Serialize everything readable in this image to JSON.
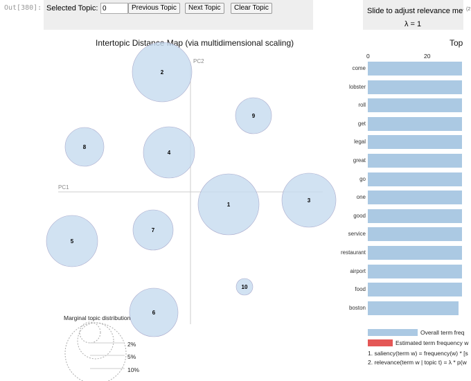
{
  "cell_prompt": "Out[380]:",
  "controls": {
    "selected_topic_label": "Selected Topic:",
    "selected_topic_value": "0",
    "prev": "Previous Topic",
    "next": "Next Topic",
    "clear": "Clear Topic"
  },
  "slider": {
    "label": "Slide to adjust relevance metri",
    "lambda": "λ = 1",
    "cut": "(2"
  },
  "left": {
    "title": "Intertopic Distance Map (via multidimensional scaling)",
    "pc1": "PC1",
    "pc2": "PC2",
    "topics": [
      "1",
      "2",
      "3",
      "4",
      "5",
      "6",
      "7",
      "8",
      "9",
      "10"
    ],
    "marginal": {
      "title": "Marginal topic distribution",
      "levels": [
        "2%",
        "5%",
        "10%"
      ]
    }
  },
  "right": {
    "title": "Top",
    "axis_ticks": [
      "0",
      "20"
    ],
    "terms": [
      "come",
      "lobster",
      "roll",
      "get",
      "legal",
      "great",
      "go",
      "one",
      "good",
      "service",
      "restaurant",
      "airport",
      "food",
      "boston"
    ],
    "legend": {
      "overall": "Overall term freq",
      "estimated": "Estimated term frequency w"
    },
    "notes": [
      "1. saliency(term w) = frequency(w) * [s",
      "2. relevance(term w | topic t) = λ * p(w"
    ]
  },
  "colors": {
    "circle": "#c6dbef",
    "bar": "#abc9e3",
    "estimated": "#e45756",
    "panel": "#eeeeee"
  }
}
